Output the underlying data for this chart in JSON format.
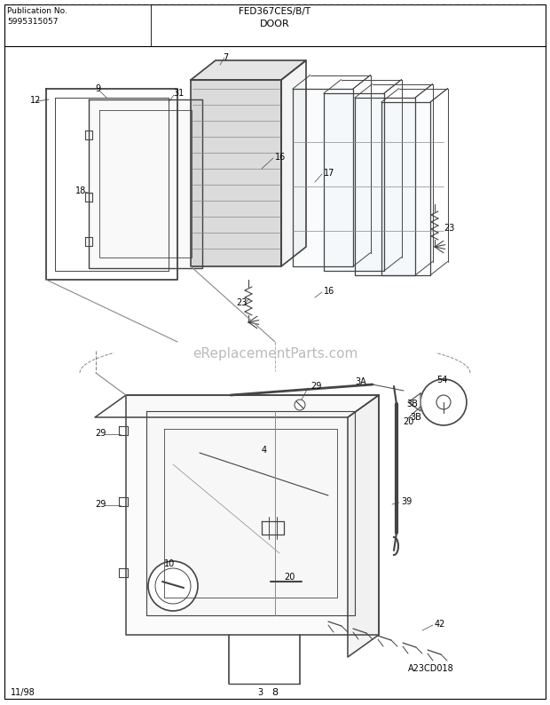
{
  "title_line1": "FED367CES/B/T",
  "title_line2": "DOOR",
  "pub_label": "Publication No.",
  "pub_number": "5995315057",
  "footer_left": "11/98",
  "footer_center": "8",
  "watermark": "eReplacementParts.com",
  "diagram_code": "A23CD018",
  "bg_color": "#ffffff",
  "border_color": "#000000",
  "line_color": "#444444",
  "label_color": "#000000",
  "watermark_color": "#bbbbbb",
  "fig_width": 6.2,
  "fig_height": 7.94,
  "dpi": 100
}
